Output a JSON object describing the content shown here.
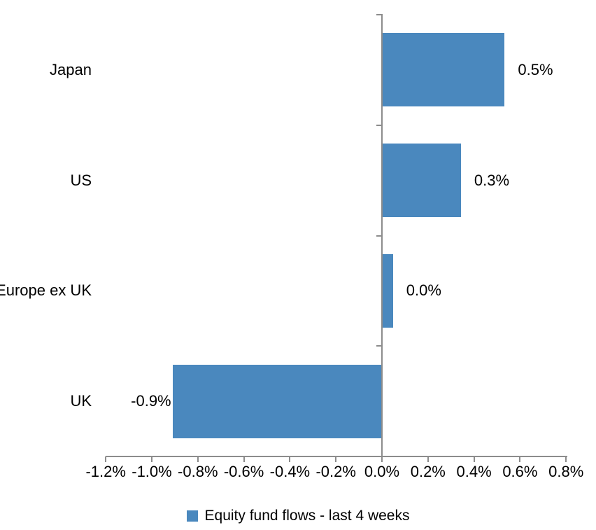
{
  "chart_data": {
    "type": "bar",
    "orientation": "horizontal",
    "title": "",
    "xlabel": "",
    "ylabel": "",
    "categories": [
      "Japan",
      "US",
      "Europe ex UK",
      "UK"
    ],
    "series": [
      {
        "name": "Equity fund flows - last 4 weeks",
        "values": [
          0.53,
          0.34,
          0.045,
          -0.91
        ],
        "data_labels": [
          "0.5%",
          "0.3%",
          "0.0%",
          "-0.9%"
        ]
      }
    ],
    "x_axis": {
      "min": -1.2,
      "max": 0.8,
      "tick_step": 0.2,
      "tick_labels": [
        "-1.2%",
        "-1.0%",
        "-0.8%",
        "-0.6%",
        "-0.4%",
        "-0.2%",
        "0.0%",
        "0.2%",
        "0.4%",
        "0.6%",
        "0.8%"
      ],
      "format": "percent"
    },
    "grid": false,
    "legend": {
      "position": "bottom",
      "label": "Equity fund flows - last 4 weeks"
    },
    "colors": {
      "bar": "#4A88BE",
      "axis": "#8C8C8C",
      "text": "#000000"
    }
  }
}
